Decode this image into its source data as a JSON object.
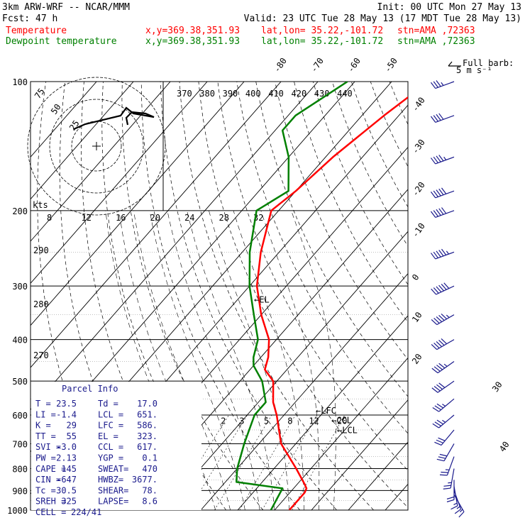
{
  "header": {
    "title": "3km ARW-WRF -- NCAR/MMM",
    "init": "Init: 00 UTC Mon 27 May 13",
    "fcst_label": "Fcst:",
    "fcst_value": "47 h",
    "valid": "Valid: 23 UTC Tue 28 May 13 (17 MDT Tue 28 May 13)",
    "temperature_label": "Temperature",
    "dewpoint_label": "Dewpoint temperature",
    "xy": "x,y=369.38,351.93",
    "latlon": "lat,lon= 35.22,-101.72",
    "stn": "stn=AMA ,72363"
  },
  "colors": {
    "temperature": "#ff0000",
    "dewpoint": "#008000",
    "annot": "#1a1a8c",
    "barbs": "#1a1a8c"
  },
  "full_barb_label": "Full barb:",
  "full_barb_units": "5 m s⁻¹",
  "hodograph": {
    "kts_label": "kts",
    "ring_labels": [
      "75",
      "50",
      "25"
    ],
    "speed_ticks": [
      "8",
      "12",
      "16",
      "20",
      "24",
      "28",
      "32"
    ]
  },
  "pressure_labels": [
    "100",
    "200",
    "300",
    "400",
    "500",
    "600",
    "700",
    "800",
    "900",
    "1000"
  ],
  "temp_labels": [
    "-80",
    "-70",
    "-60",
    "-50",
    "-40",
    "-30",
    "-20",
    "-10",
    "0",
    "10",
    "20",
    "30",
    "40"
  ],
  "theta_labels": [
    "370",
    "380",
    "390",
    "400",
    "410",
    "420",
    "430",
    "440"
  ],
  "theta_left_labels": [
    "290",
    "280",
    "270"
  ],
  "mixing_labels": [
    "2",
    "3",
    "5",
    "8",
    "12",
    "20"
  ],
  "levels": {
    "el": "EL",
    "lfc": "LFC",
    "ccl": "CCL",
    "lcl": "LCL"
  },
  "parcel": {
    "title": "Parcel Info",
    "rows": [
      [
        "T  =",
        "23.5",
        "Td =",
        "17.0"
      ],
      [
        "LI =",
        "-1.4",
        "LCL =",
        "651."
      ],
      [
        "K  =",
        "29",
        "LFC =",
        "586."
      ],
      [
        "TT =",
        "55",
        "EL  =",
        "323."
      ],
      [
        "SVI =",
        "-3.0",
        "CCL =",
        "617."
      ],
      [
        "PW =",
        "2.13",
        "YGP =",
        "0.1"
      ],
      [
        "CAPE =",
        "145",
        "SWEAT=",
        "470"
      ],
      [
        "CIN =",
        "-647",
        "HWBZ=",
        "3677."
      ],
      [
        "Tc =",
        "30.5",
        "SHEAR=",
        "78."
      ],
      [
        "SREH =",
        "325",
        "LAPSE=",
        "8.6"
      ],
      [
        "CELL =",
        "224/41",
        "",
        ""
      ]
    ]
  },
  "chart_data": {
    "type": "line",
    "title": "",
    "xlabel": "",
    "ylabel": "",
    "y_axis": "pressure (hPa), log scale",
    "ylim": [
      1000,
      100
    ],
    "series": [
      {
        "name": "Temperature",
        "pressure": [
          1000,
          910,
          890,
          870,
          800,
          700,
          600,
          560,
          500,
          470,
          440,
          400,
          350,
          300,
          250,
          200,
          180,
          150,
          120,
          100
        ],
        "temperature": [
          24,
          24,
          23.5,
          22,
          16,
          6,
          -2,
          -6,
          -11,
          -16,
          -18,
          -22,
          -30,
          -38,
          -45,
          -52,
          -50,
          -48,
          -44,
          -40
        ]
      },
      {
        "name": "Dewpoint temperature",
        "pressure": [
          1000,
          890,
          860,
          800,
          700,
          600,
          560,
          500,
          460,
          440,
          400,
          350,
          300,
          250,
          200,
          180,
          150,
          130,
          120,
          100
        ],
        "dewpoint": [
          19,
          17,
          3,
          0,
          -4,
          -8,
          -8,
          -14,
          -20,
          -22,
          -25,
          -32,
          -40,
          -48,
          -56,
          -52,
          -60,
          -68,
          -68,
          -62
        ]
      }
    ],
    "wind_barbs": {
      "pressure": [
        100,
        120,
        150,
        180,
        200,
        250,
        300,
        350,
        400,
        450,
        500,
        550,
        600,
        650,
        700,
        750,
        800,
        850,
        880,
        900,
        920
      ],
      "speed_kt": [
        35,
        40,
        45,
        50,
        50,
        55,
        60,
        55,
        50,
        45,
        40,
        35,
        35,
        30,
        30,
        25,
        25,
        20,
        15,
        15,
        15
      ],
      "direction_deg": [
        250,
        250,
        250,
        250,
        250,
        250,
        245,
        240,
        240,
        235,
        235,
        230,
        230,
        220,
        210,
        200,
        190,
        180,
        170,
        160,
        150
      ]
    }
  }
}
